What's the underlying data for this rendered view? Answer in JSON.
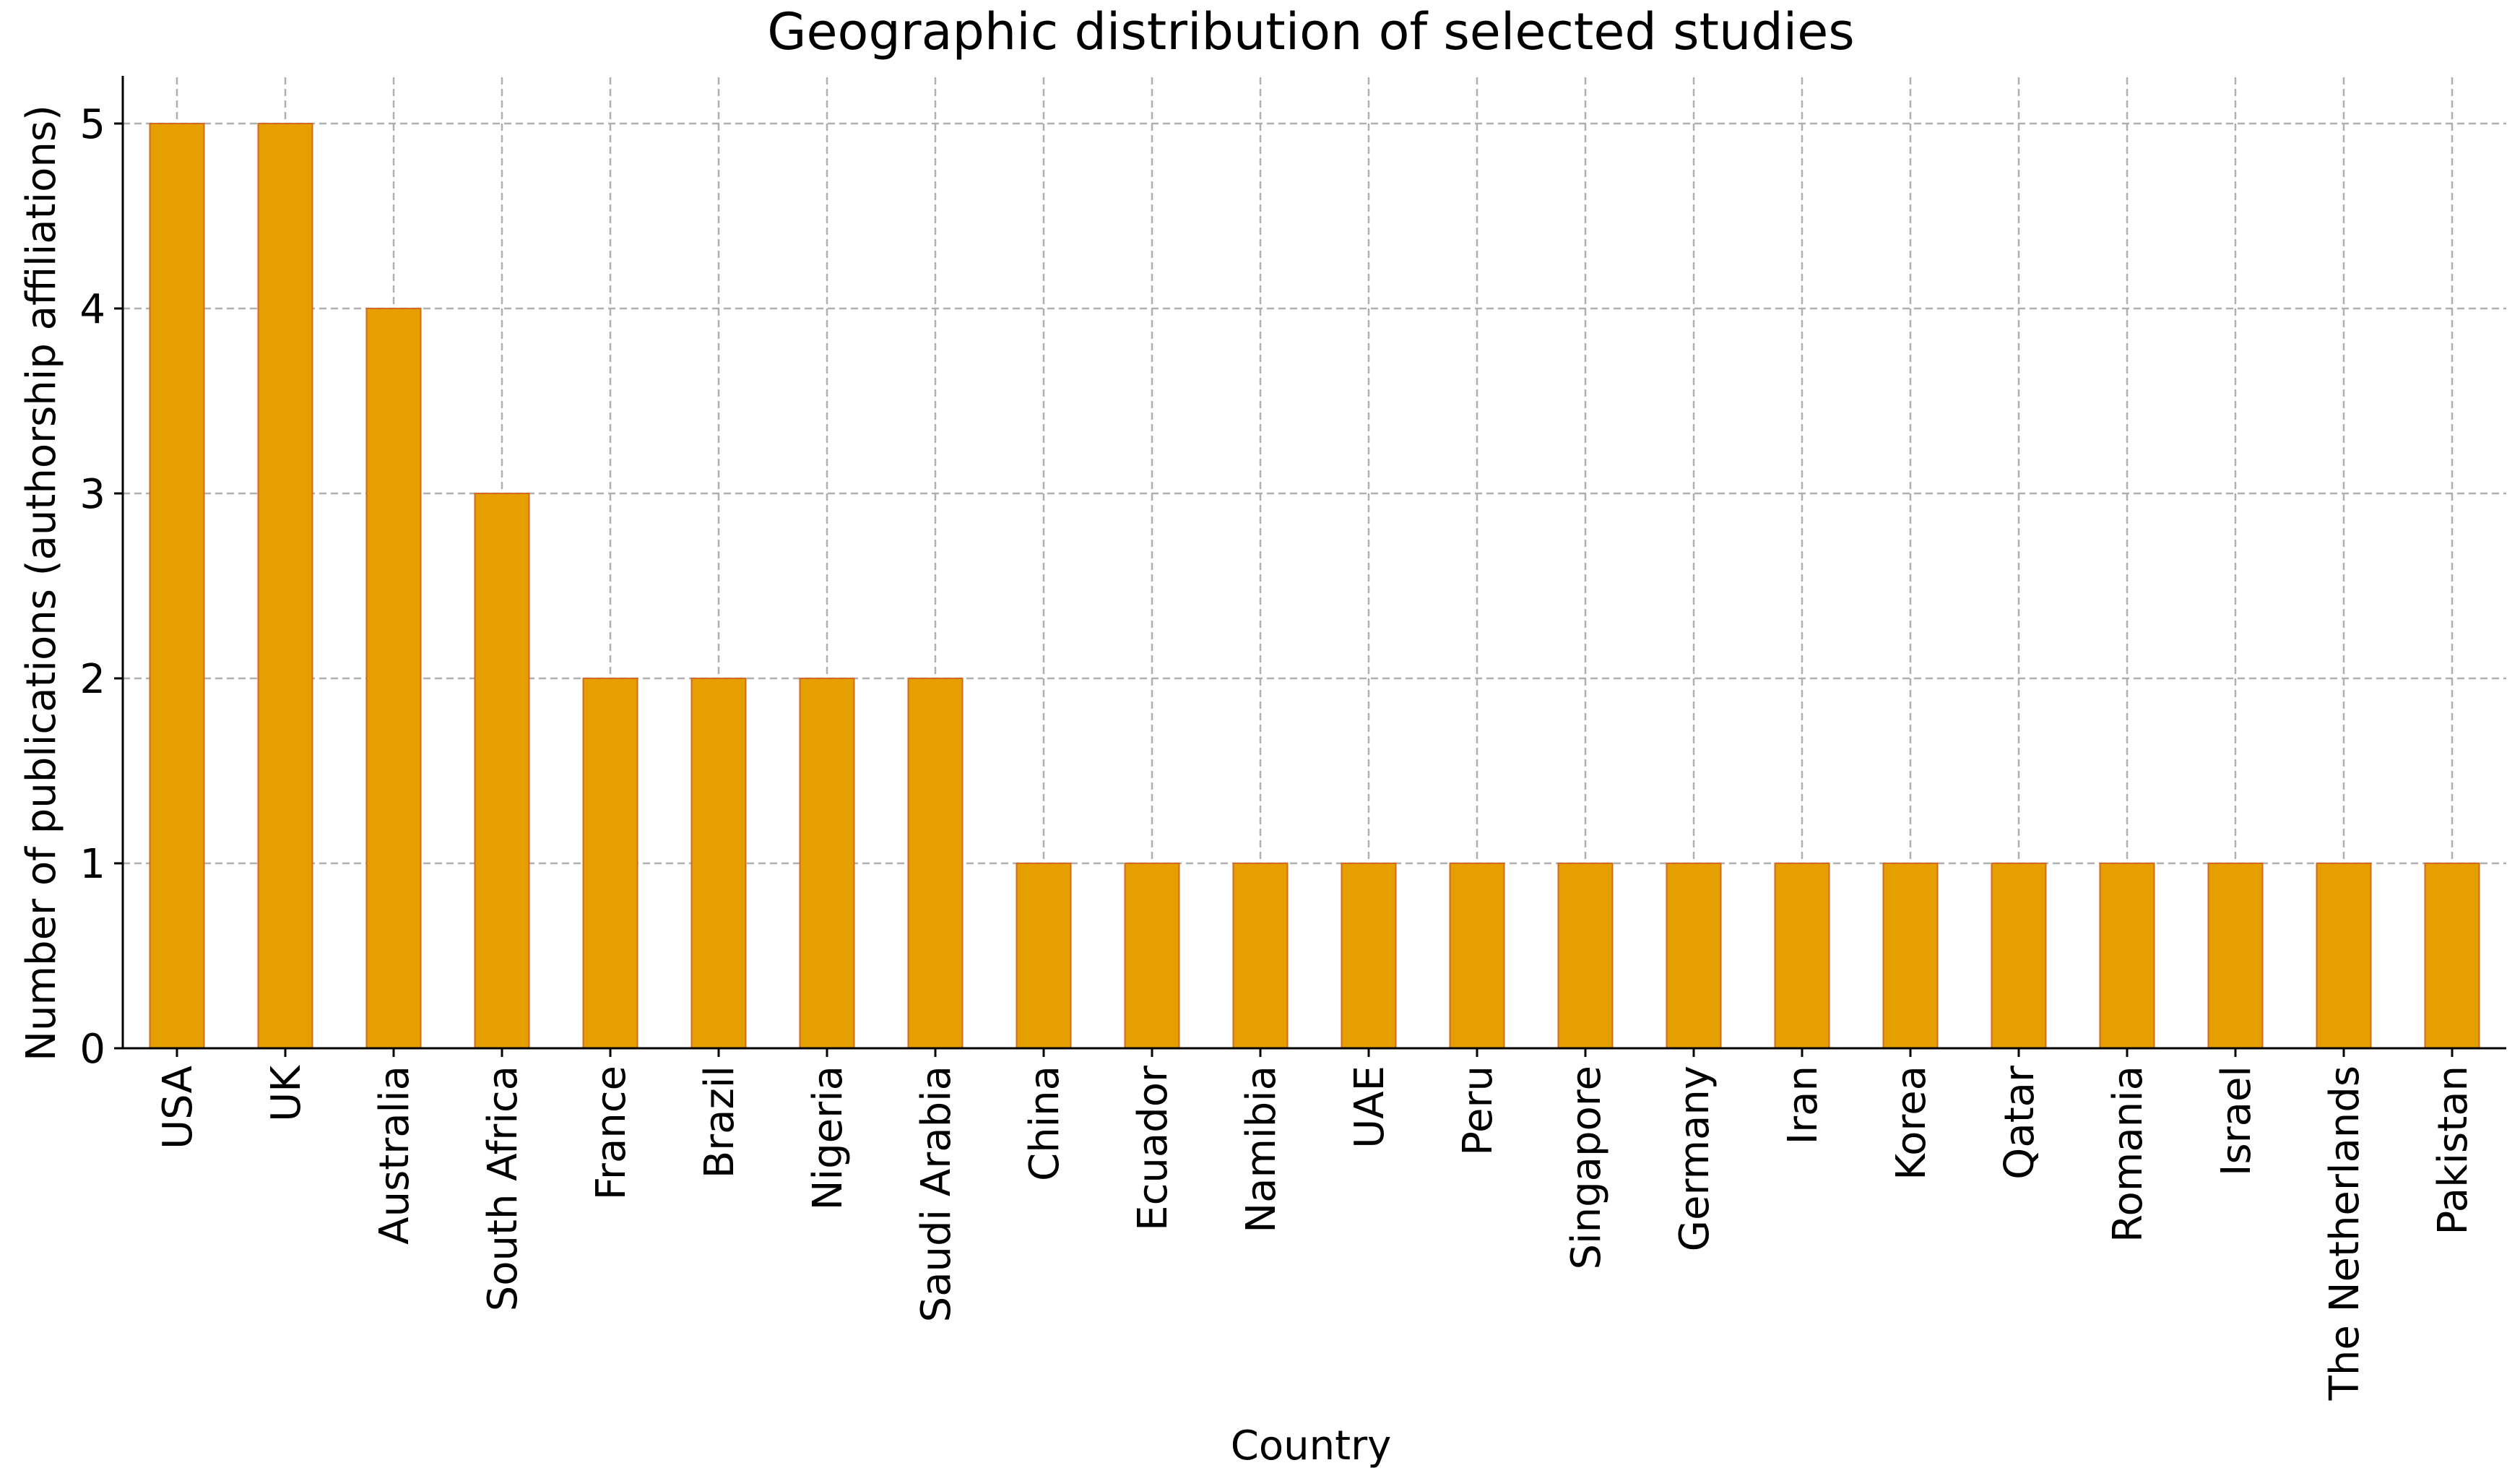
{
  "chart_data": {
    "type": "bar",
    "title": "Geographic distribution of selected studies",
    "xlabel": "Country",
    "ylabel": "Number of publications (authorship affiliations)",
    "categories": [
      "USA",
      "UK",
      "Australia",
      "South Africa",
      "France",
      "Brazil",
      "Nigeria",
      "Saudi Arabia",
      "China",
      "Ecuador",
      "Namibia",
      "UAE",
      "Peru",
      "Singapore",
      "Germany",
      "Iran",
      "Korea",
      "Qatar",
      "Romania",
      "Israel",
      "The Netherlands",
      "Pakistan"
    ],
    "values": [
      5,
      5,
      4,
      3,
      2,
      2,
      2,
      2,
      1,
      1,
      1,
      1,
      1,
      1,
      1,
      1,
      1,
      1,
      1,
      1,
      1,
      1
    ],
    "ylim": [
      0,
      5.25
    ],
    "yticks": [
      0,
      1,
      2,
      3,
      4,
      5
    ],
    "grid": true,
    "bar_color": "#E69F00",
    "bar_edge_color": "#D2691E"
  }
}
